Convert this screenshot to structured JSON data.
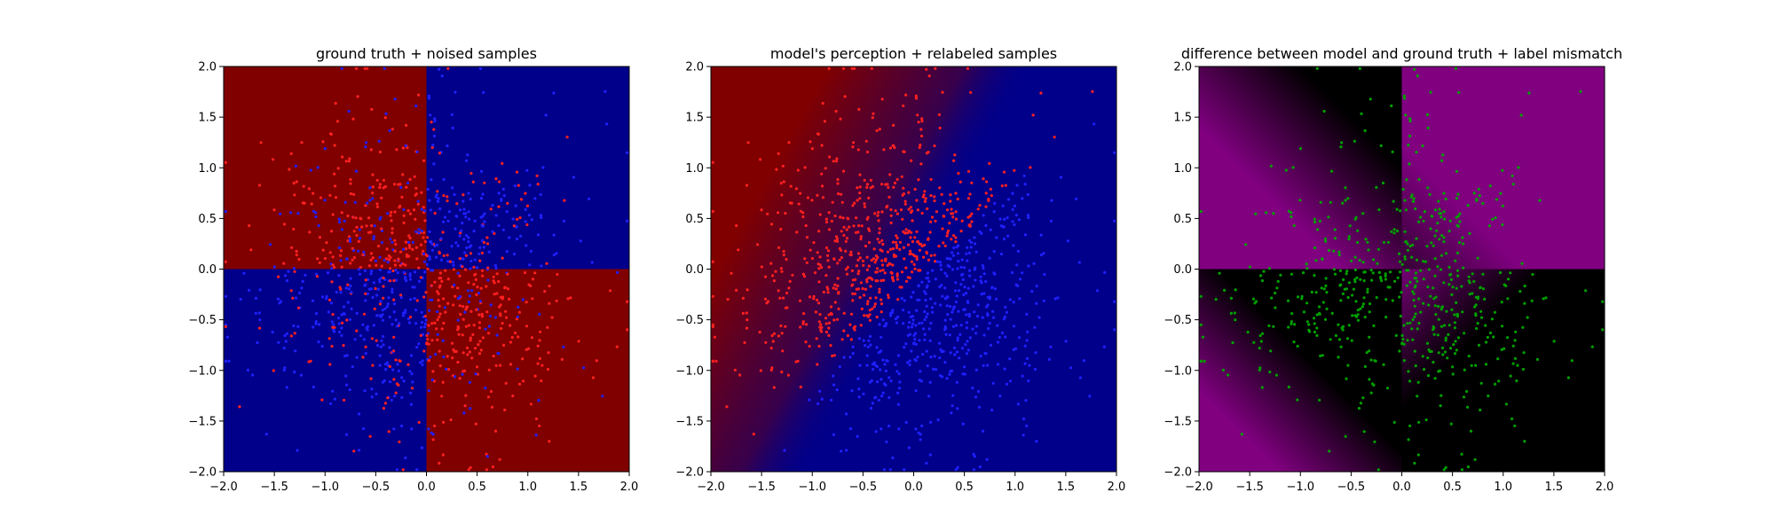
{
  "chart_data": [
    {
      "type": "heatmap",
      "title": "ground truth + noised samples",
      "xlabel": "",
      "ylabel": "",
      "xlim": [
        -2.0,
        2.0
      ],
      "ylim": [
        -2.0,
        2.0
      ],
      "xticks": [
        "−2.0",
        "−1.5",
        "−1.0",
        "−0.5",
        "0.0",
        "0.5",
        "1.0",
        "1.5",
        "2.0"
      ],
      "yticks": [
        "−2.0",
        "−1.5",
        "−1.0",
        "−0.5",
        "0.0",
        "0.5",
        "1.0",
        "1.5",
        "2.0"
      ],
      "grid": false,
      "background": "quadrant checkerboard: red where x<0,y>0 and x>0,y<0; blue elsewhere",
      "colors": {
        "positive": "#800000",
        "negative": "#00008b"
      },
      "scatter": {
        "description": "~1000 samples, uniform-ish cloud centered near (0, 0); points colored by noised label (mostly matching region, some flipped)",
        "point_colors": [
          "#ff2020",
          "#2020ff"
        ]
      }
    },
    {
      "type": "heatmap",
      "title": "model's perception + relabeled samples",
      "xlabel": "",
      "ylabel": "",
      "xlim": [
        -2.0,
        2.0
      ],
      "ylim": [
        -2.0,
        2.0
      ],
      "xticks": [
        "−2.0",
        "−1.5",
        "−1.0",
        "−0.5",
        "0.0",
        "0.5",
        "1.0",
        "1.5",
        "2.0"
      ],
      "yticks": [
        "−2.0",
        "−1.5",
        "−1.0",
        "−0.5",
        "0.0",
        "0.5",
        "1.0",
        "1.5",
        "2.0"
      ],
      "grid": false,
      "background": "smooth decision surface: red on upper-left, blue on lower-right, diagonal soft boundary",
      "colors": {
        "positive": "#800000",
        "negative": "#00008b"
      },
      "scatter": {
        "description": "same samples relabeled by model: red above diagonal boundary, blue below",
        "point_colors": [
          "#ff2020",
          "#2020ff"
        ]
      }
    },
    {
      "type": "heatmap",
      "title": "difference between model and ground truth + label mismatch",
      "xlabel": "",
      "ylabel": "",
      "xlim": [
        -2.0,
        2.0
      ],
      "ylim": [
        -2.0,
        2.0
      ],
      "xticks": [
        "−2.0",
        "−1.5",
        "−1.0",
        "−0.5",
        "0.0",
        "0.5",
        "1.0",
        "1.5",
        "2.0"
      ],
      "yticks": [
        "−2.0",
        "−1.5",
        "−1.0",
        "−0.5",
        "0.0",
        "0.5",
        "1.0",
        "1.5",
        "2.0"
      ],
      "grid": false,
      "background": "magenta where model disagrees with ground truth, black where it agrees",
      "colors": {
        "mismatch": "#800080",
        "match": "#000000"
      },
      "scatter": {
        "description": "green points only where labels mismatch (mostly near x≈-0.3 band and in upper-left/lower-right boundary regions)",
        "point_colors": [
          "#00a000"
        ]
      }
    }
  ]
}
